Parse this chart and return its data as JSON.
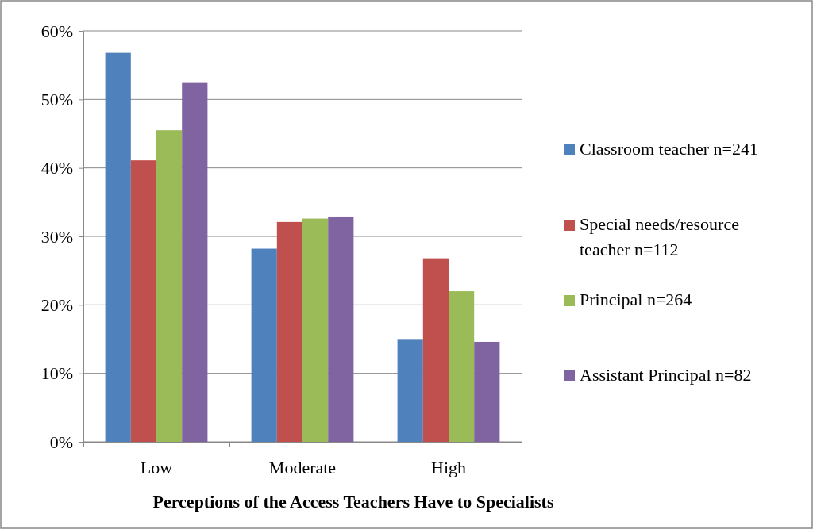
{
  "chart_data": {
    "type": "bar",
    "xlabel": "Perceptions of the Access Teachers Have to Specialists",
    "categories": [
      "Low",
      "Moderate",
      "High"
    ],
    "series": [
      {
        "name": "Classroom teacher n=241",
        "color": "#4f81bd",
        "values": [
          56.8,
          28.2,
          14.9
        ]
      },
      {
        "name": "Special needs/resource teacher n=112",
        "color": "#c0504d",
        "values": [
          41.1,
          32.1,
          26.8
        ]
      },
      {
        "name": "Principal n=264",
        "color": "#9bbb59",
        "values": [
          45.5,
          32.6,
          22.0
        ]
      },
      {
        "name": "Assistant Principal n=82",
        "color": "#8064a2",
        "values": [
          52.4,
          32.9,
          14.6
        ]
      }
    ],
    "ylim": [
      0,
      60
    ],
    "yticks": [
      {
        "value": 0,
        "label": "0%"
      },
      {
        "value": 10,
        "label": "10%"
      },
      {
        "value": 20,
        "label": "20%"
      },
      {
        "value": 30,
        "label": "30%"
      },
      {
        "value": 40,
        "label": "40%"
      },
      {
        "value": 50,
        "label": "50%"
      },
      {
        "value": 60,
        "label": "60%"
      }
    ],
    "grid": "y",
    "legend": "right"
  }
}
